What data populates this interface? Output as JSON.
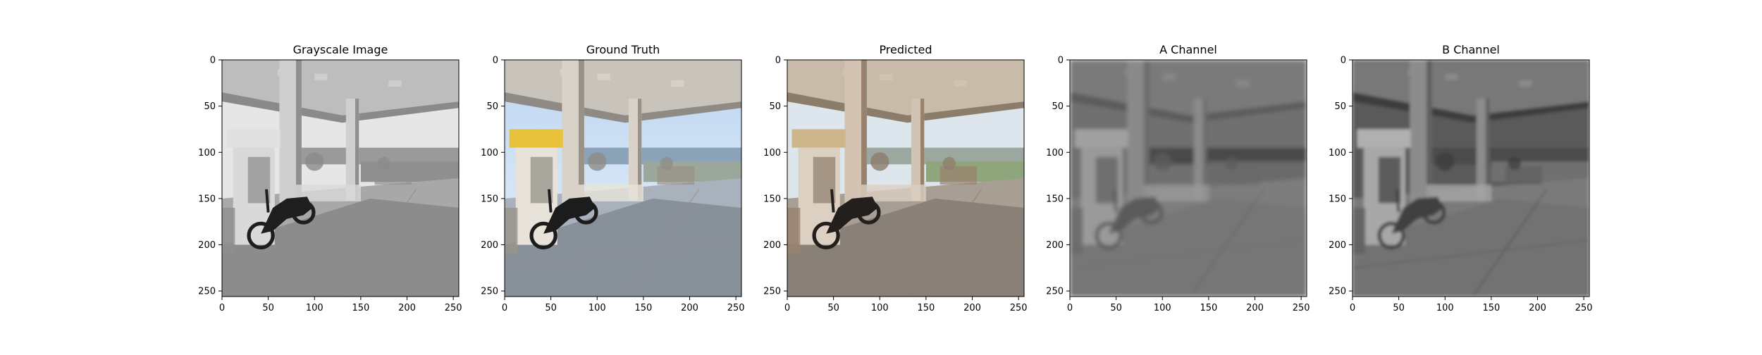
{
  "figure": {
    "panels": [
      {
        "title": "Grayscale Image",
        "kind": "grayscale"
      },
      {
        "title": "Ground Truth",
        "kind": "color"
      },
      {
        "title": "Predicted",
        "kind": "predicted"
      },
      {
        "title": "A Channel",
        "kind": "channel_a"
      },
      {
        "title": "B Channel",
        "kind": "channel_b"
      }
    ],
    "x_ticks": [
      "0",
      "50",
      "100",
      "150",
      "200",
      "250"
    ],
    "y_ticks": [
      "0",
      "50",
      "100",
      "150",
      "200",
      "250"
    ],
    "image_extent": [
      0,
      256
    ]
  }
}
